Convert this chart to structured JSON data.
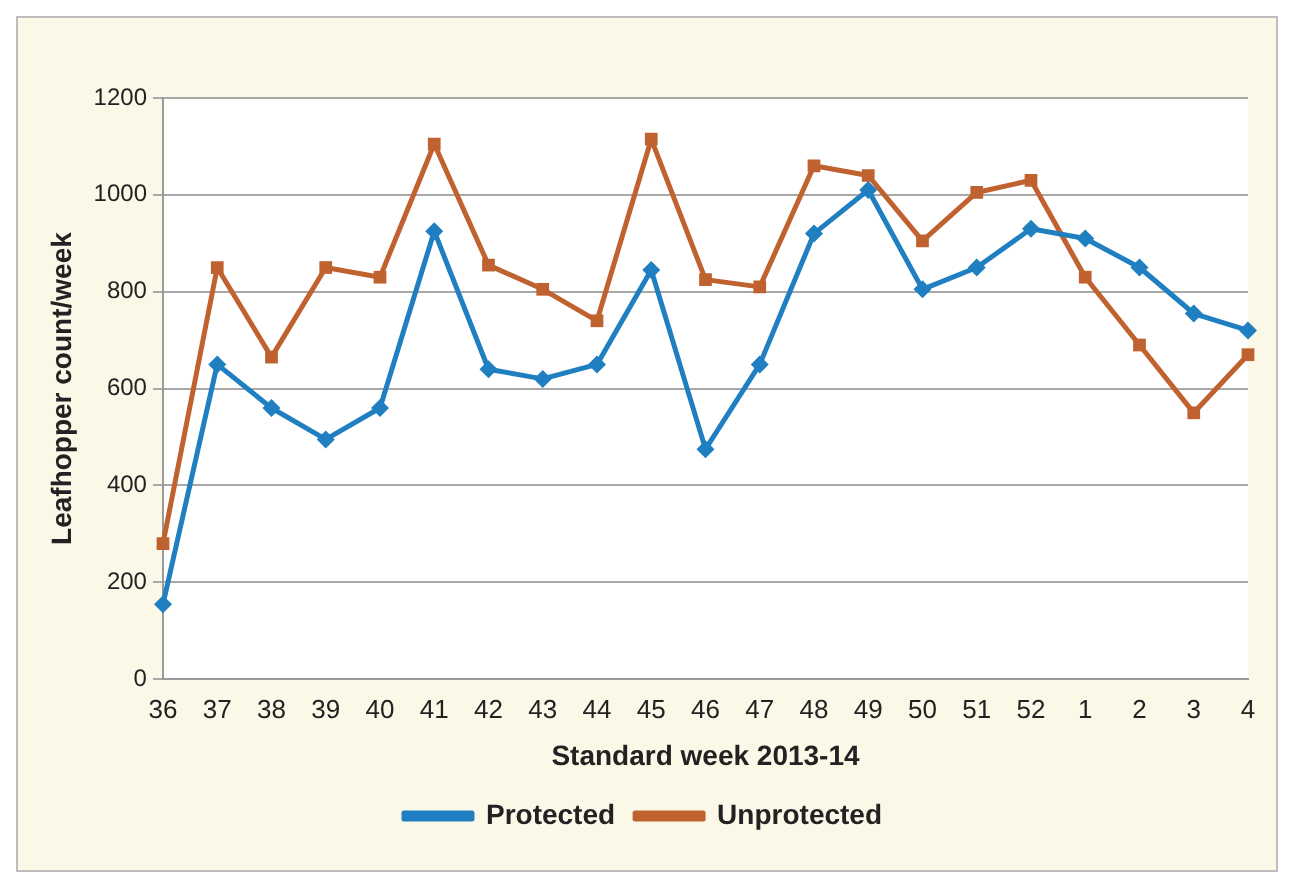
{
  "chart_data": {
    "type": "line",
    "xlabel": "Standard week 2013-14",
    "ylabel": "Leafhopper count/week",
    "categories": [
      "36",
      "37",
      "38",
      "39",
      "40",
      "41",
      "42",
      "43",
      "44",
      "45",
      "46",
      "47",
      "48",
      "49",
      "50",
      "51",
      "52",
      "1",
      "2",
      "3",
      "4"
    ],
    "series": [
      {
        "name": "Protected",
        "color": "#1f7fc0",
        "marker": "diamond",
        "values": [
          155,
          650,
          560,
          495,
          560,
          925,
          640,
          620,
          650,
          845,
          475,
          650,
          920,
          1010,
          805,
          850,
          930,
          910,
          850,
          755,
          720
        ]
      },
      {
        "name": "Unprotected",
        "color": "#c0622f",
        "marker": "square",
        "values": [
          280,
          850,
          665,
          850,
          830,
          1105,
          855,
          805,
          740,
          1115,
          825,
          810,
          1060,
          1040,
          905,
          1005,
          1030,
          830,
          690,
          550,
          670
        ]
      }
    ],
    "ylim": [
      0,
      1200
    ],
    "yticks": [
      0,
      200,
      400,
      600,
      800,
      1000,
      1200
    ],
    "grid": "y",
    "legend": "bottom",
    "line_style": "solid"
  }
}
